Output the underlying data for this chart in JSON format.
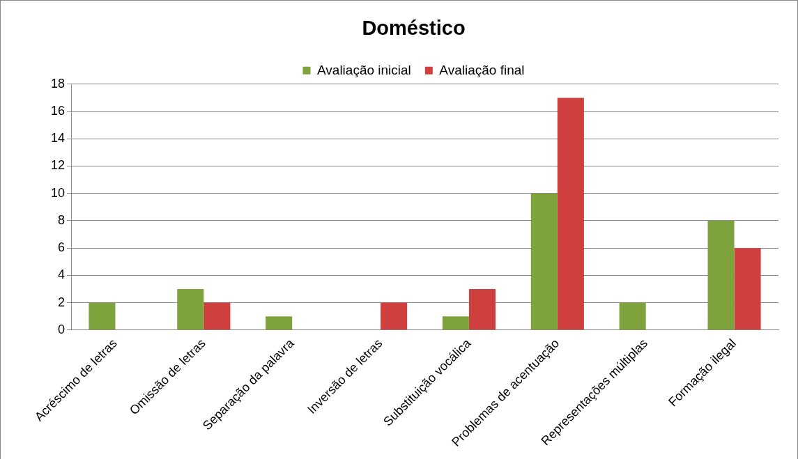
{
  "chart_data": {
    "type": "bar",
    "title": "Doméstico",
    "categories": [
      "Acréscimo de letras",
      "Omissão de letras",
      "Separação da palavra",
      "Inversão de letras",
      "Substituição vocálica",
      "Problemas de acentuação",
      "Representações múltiplas",
      "Formação ilegal"
    ],
    "series": [
      {
        "name": "Avaliação inicial",
        "color": "#7fa33c",
        "values": [
          2,
          3,
          1,
          null,
          1,
          10,
          2,
          8
        ]
      },
      {
        "name": "Avaliação final",
        "color": "#cf3f3d",
        "values": [
          null,
          2,
          null,
          2,
          3,
          17,
          null,
          6
        ]
      }
    ],
    "ylim": [
      0,
      18
    ],
    "yticks": [
      0,
      2,
      4,
      6,
      8,
      10,
      12,
      14,
      16,
      18
    ],
    "grid": "y",
    "legend": "top"
  }
}
